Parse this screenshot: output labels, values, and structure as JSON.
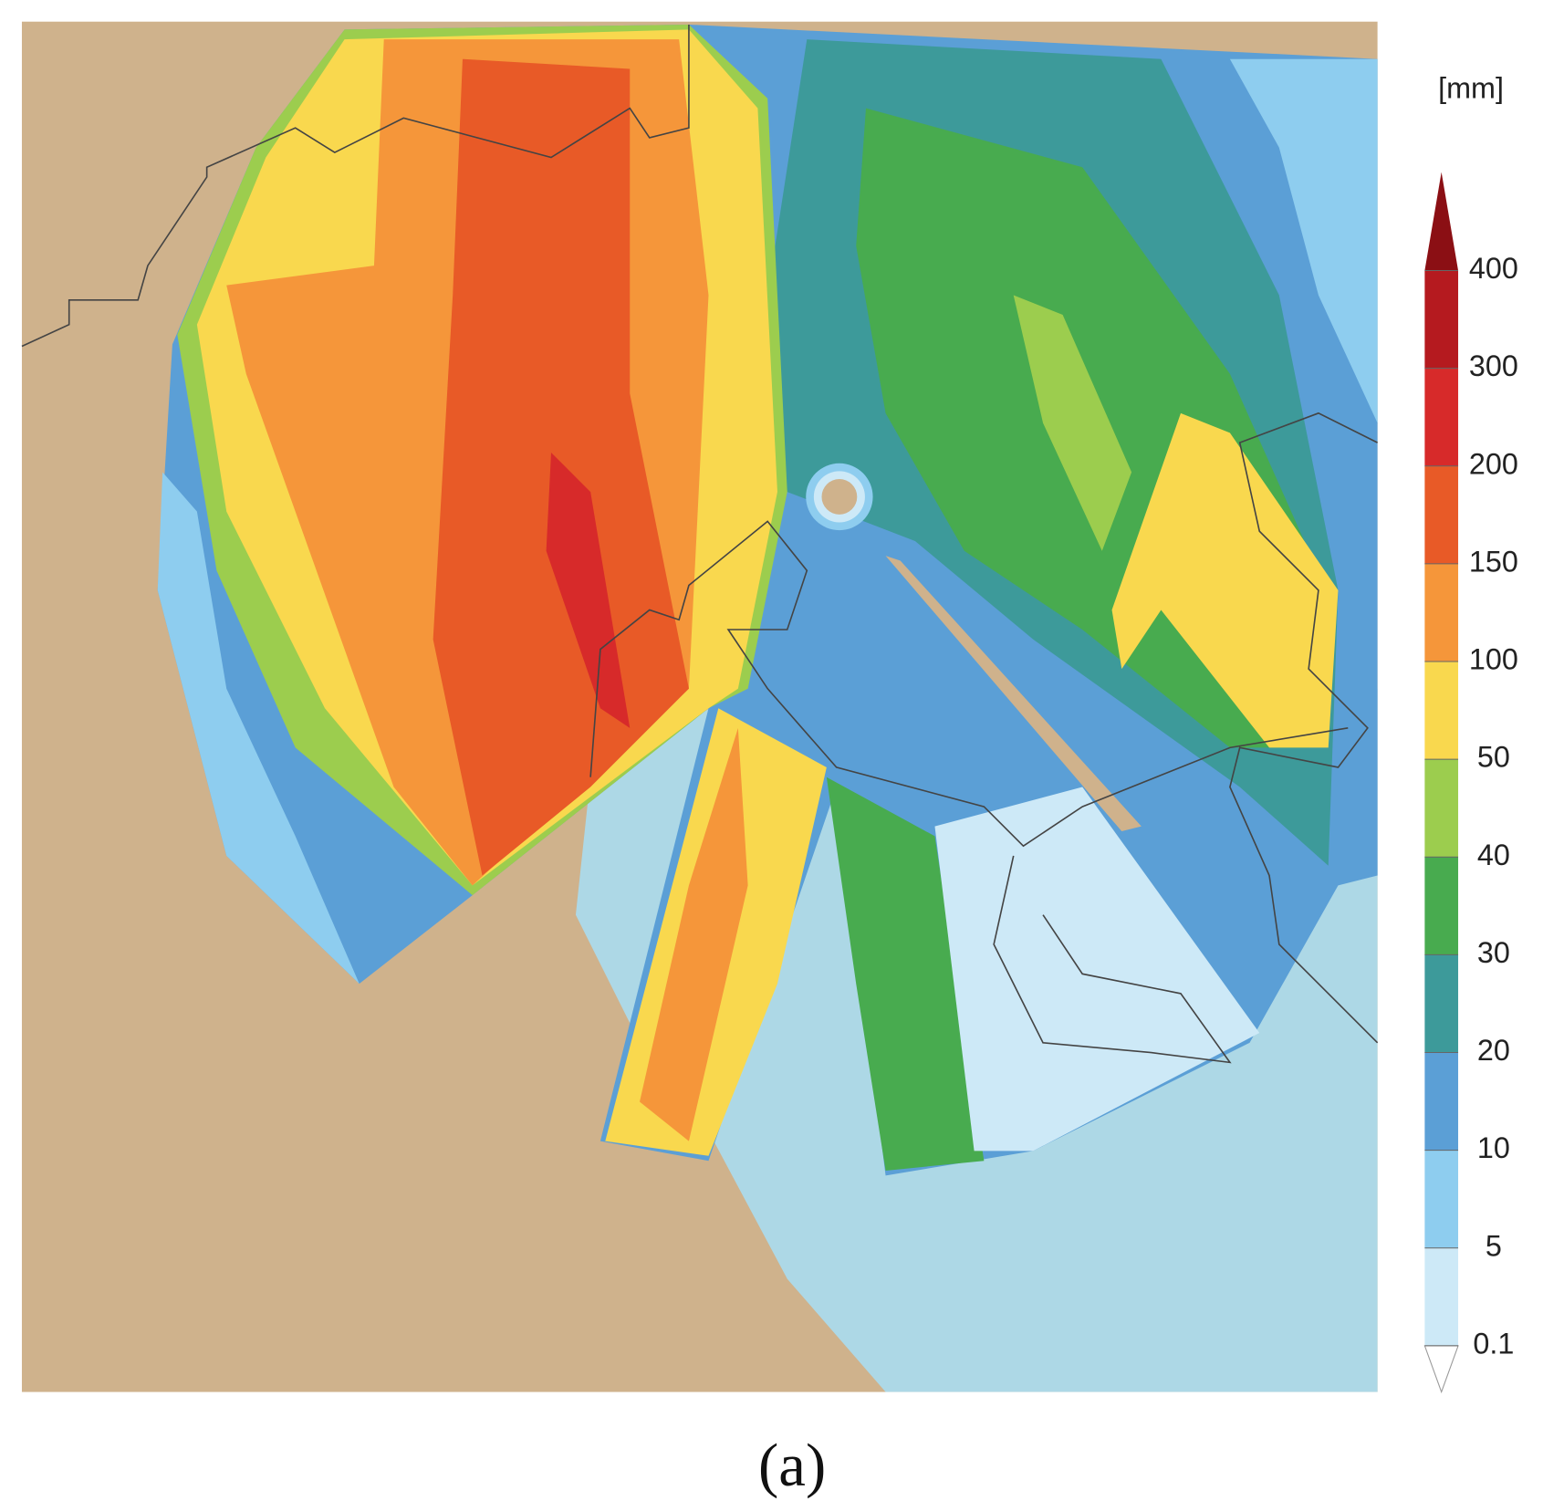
{
  "colorbar": {
    "unit": "[mm]",
    "levels": [
      0.1,
      5,
      10,
      20,
      30,
      40,
      50,
      100,
      150,
      200,
      300,
      400
    ],
    "colors": [
      "#cde9f7",
      "#8ecdef",
      "#5b9fd6",
      "#3d9a9a",
      "#48ab4f",
      "#9ccd4e",
      "#f9d84e",
      "#f5963a",
      "#e85a27",
      "#d72a2a",
      "#b51a1f"
    ],
    "under_color": "#ffffff",
    "over_color": "#8b0f14"
  },
  "caption": "(a)"
}
